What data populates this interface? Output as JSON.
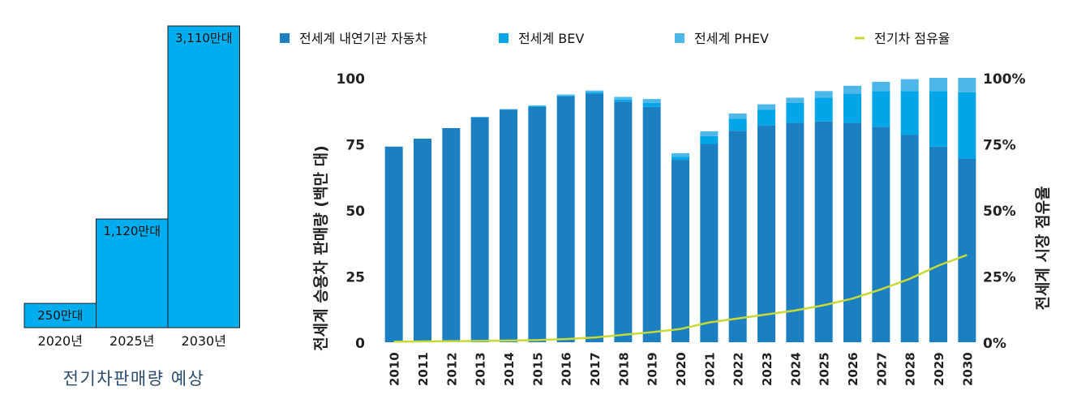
{
  "chart_data": [
    {
      "type": "bar",
      "title": "전기차판매량 예상",
      "categories": [
        "2020년",
        "2025년",
        "2030년"
      ],
      "values": [
        250,
        1120,
        3110
      ],
      "data_labels": [
        "250만대",
        "1,120만대",
        "3,110만대"
      ],
      "unit": "만대",
      "bar_color": "#00AEEF"
    },
    {
      "type": "bar",
      "stacked": true,
      "x": [
        "2010",
        "2011",
        "2012",
        "2013",
        "2014",
        "2015",
        "2016",
        "2017",
        "2018",
        "2019",
        "2020",
        "2021",
        "2022",
        "2023",
        "2024",
        "2025",
        "2026",
        "2027",
        "2028",
        "2029",
        "2030"
      ],
      "ylabel": "전세계 승용차 판매량 (백만 대)",
      "y2label": "전세계 시장 점유율",
      "ylim": [
        0,
        100
      ],
      "yticks": [
        "0",
        "25",
        "50",
        "75",
        "100"
      ],
      "y2ticks": [
        "0%",
        "25%",
        "50%",
        "75%",
        "100%"
      ],
      "legend_position": "top",
      "series": [
        {
          "name": "전세계 내연기관 자동차",
          "type": "bar",
          "color": "#1B7FC1",
          "values": [
            74,
            77,
            81,
            85,
            88,
            89,
            93,
            94,
            91,
            89,
            69,
            75,
            80,
            82,
            83,
            83.5,
            83,
            81.5,
            78.5,
            74,
            69.5
          ]
        },
        {
          "name": "전세계 BEV",
          "type": "bar",
          "color": "#00A6E8",
          "values": [
            0,
            0,
            0,
            0,
            0,
            0.3,
            0.3,
            0.5,
            0.8,
            1.5,
            1.2,
            3,
            4.5,
            6,
            7.5,
            9,
            11,
            13.5,
            16.5,
            21,
            25
          ]
        },
        {
          "name": "전세계 PHEV",
          "type": "bar",
          "color": "#4DB8E8",
          "values": [
            0,
            0,
            0,
            0.3,
            0.2,
            0.3,
            0.4,
            0.7,
            1,
            1.5,
            1.3,
            1.8,
            2,
            2,
            2,
            2.5,
            3,
            3.5,
            4.5,
            5,
            5.5
          ]
        },
        {
          "name": "전기차 점유율",
          "type": "line",
          "axis": "right",
          "color": "#C7D934",
          "values": [
            0.2,
            0.3,
            0.4,
            0.5,
            0.6,
            0.8,
            1.2,
            1.8,
            2.8,
            3.8,
            5,
            7.5,
            9,
            10.5,
            12,
            14,
            16.5,
            20,
            24,
            29,
            33
          ]
        }
      ]
    }
  ]
}
